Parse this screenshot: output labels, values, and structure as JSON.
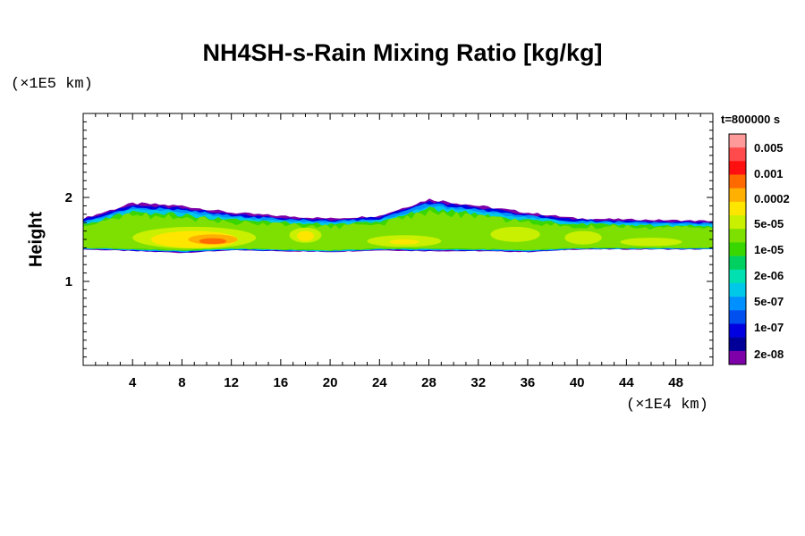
{
  "chart_data": {
    "type": "heatmap",
    "title": "NH4SH-s-Rain Mixing Ratio [kg/kg]",
    "xlabel": "",
    "ylabel": "Height",
    "x_scale_label": "(×1E4 km)",
    "y_scale_label": "(×1E5 km)",
    "time_label": "t=800000 s",
    "xlim": [
      0,
      51
    ],
    "ylim": [
      0,
      3
    ],
    "x_ticks": [
      4,
      8,
      12,
      16,
      20,
      24,
      28,
      32,
      36,
      40,
      44,
      48
    ],
    "y_ticks": [
      1,
      2
    ],
    "colorbar": {
      "labels": [
        "0.005",
        "0.001",
        "0.0002",
        "5e-05",
        "1e-05",
        "2e-06",
        "5e-07",
        "1e-07",
        "2e-08"
      ],
      "colors": [
        "#ff9a9a",
        "#ff4b4b",
        "#ff1010",
        "#ff6a00",
        "#ffb000",
        "#ffe600",
        "#c8f000",
        "#7ee000",
        "#3ad600",
        "#00d060",
        "#00e0b0",
        "#00c8e8",
        "#0090ff",
        "#0050f0",
        "#0000e0",
        "#000098",
        "#7d00a8"
      ]
    },
    "cloud_layer": {
      "base_height": [
        1.38,
        1.36,
        1.34,
        1.37,
        1.36,
        1.35,
        1.37,
        1.36,
        1.36,
        1.35,
        1.38,
        1.38
      ],
      "top_height": [
        1.75,
        1.93,
        1.9,
        1.82,
        1.78,
        1.75,
        1.78,
        1.98,
        1.9,
        1.82,
        1.75,
        1.72
      ],
      "x": [
        0,
        4,
        8,
        12,
        16,
        20,
        24,
        28,
        32,
        36,
        40,
        51
      ]
    }
  }
}
